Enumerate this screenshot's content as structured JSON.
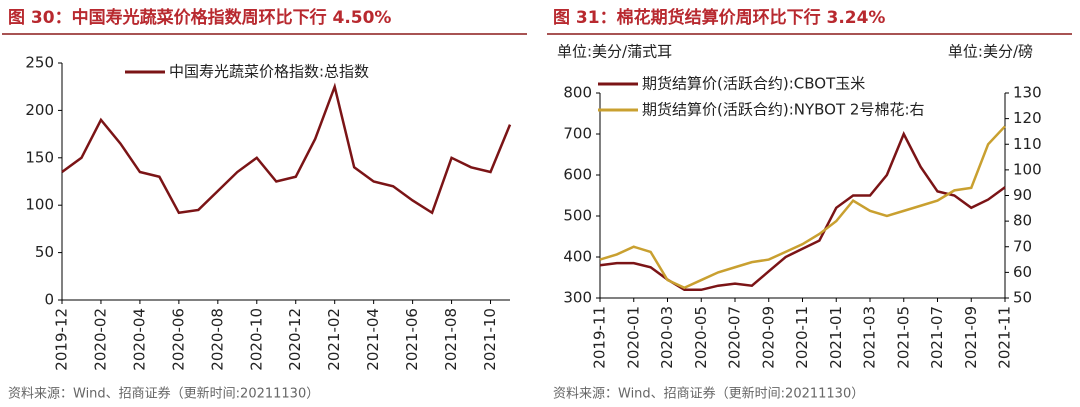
{
  "chart_data": [
    {
      "type": "line",
      "title": "图 30：中国寿光蔬菜价格指数周环比下行 4.50%",
      "source": "资料来源：Wind、招商证券（更新时间:20211130）",
      "x": [
        "2019-12",
        "2020-01",
        "2020-02",
        "2020-03",
        "2020-04",
        "2020-05",
        "2020-06",
        "2020-07",
        "2020-08",
        "2020-09",
        "2020-10",
        "2020-11",
        "2020-12",
        "2021-01",
        "2021-02",
        "2021-03",
        "2021-04",
        "2021-05",
        "2021-06",
        "2021-07",
        "2021-08",
        "2021-09",
        "2021-10",
        "2021-11"
      ],
      "xticks": [
        "2019-12",
        "2020-02",
        "2020-04",
        "2020-06",
        "2020-08",
        "2020-10",
        "2020-12",
        "2021-02",
        "2021-04",
        "2021-06",
        "2021-08",
        "2021-10"
      ],
      "ylim": [
        0,
        250
      ],
      "yticks": [
        0,
        50,
        100,
        150,
        200,
        250
      ],
      "series": [
        {
          "name": "中国寿光蔬菜价格指数:总指数",
          "color": "#7b1416",
          "values": [
            135,
            150,
            190,
            165,
            135,
            130,
            92,
            95,
            115,
            135,
            150,
            125,
            130,
            170,
            225,
            140,
            125,
            120,
            105,
            92,
            150,
            140,
            135,
            185
          ]
        }
      ]
    },
    {
      "type": "line",
      "title": "图 31：棉花期货结算价周环比下行 3.24%",
      "source": "资料来源：Wind、招商证券（更新时间:20211130）",
      "y_unit": "单位:美分/蒲式耳",
      "y2_unit": "单位:美分/磅",
      "x": [
        "2019-11",
        "2019-12",
        "2020-01",
        "2020-02",
        "2020-03",
        "2020-04",
        "2020-05",
        "2020-06",
        "2020-07",
        "2020-08",
        "2020-09",
        "2020-10",
        "2020-11",
        "2020-12",
        "2021-01",
        "2021-02",
        "2021-03",
        "2021-04",
        "2021-05",
        "2021-06",
        "2021-07",
        "2021-08",
        "2021-09",
        "2021-10",
        "2021-11"
      ],
      "xticks": [
        "2019-11",
        "2020-01",
        "2020-03",
        "2020-05",
        "2020-07",
        "2020-09",
        "2020-11",
        "2021-01",
        "2021-03",
        "2021-05",
        "2021-07",
        "2021-09",
        "2021-11"
      ],
      "ylim": [
        300,
        800
      ],
      "yticks": [
        300,
        400,
        500,
        600,
        700,
        800
      ],
      "y2lim": [
        50,
        130
      ],
      "y2ticks": [
        50,
        60,
        70,
        80,
        90,
        100,
        110,
        120,
        130
      ],
      "series": [
        {
          "name": "期货结算价(活跃合约):CBOT玉米",
          "color": "#7b1416",
          "values": [
            380,
            385,
            385,
            375,
            345,
            320,
            320,
            330,
            335,
            330,
            365,
            400,
            420,
            440,
            520,
            550,
            550,
            600,
            700,
            620,
            560,
            550,
            520,
            540,
            570
          ]
        },
        {
          "name": "期货结算价(活跃合约):NYBOT 2号棉花:右",
          "color": "#c9a030",
          "axis": "y2",
          "values": [
            65,
            67,
            70,
            68,
            57,
            54,
            57,
            60,
            62,
            64,
            65,
            68,
            71,
            75,
            80,
            88,
            84,
            82,
            84,
            86,
            88,
            92,
            93,
            110,
            117
          ]
        }
      ]
    }
  ]
}
